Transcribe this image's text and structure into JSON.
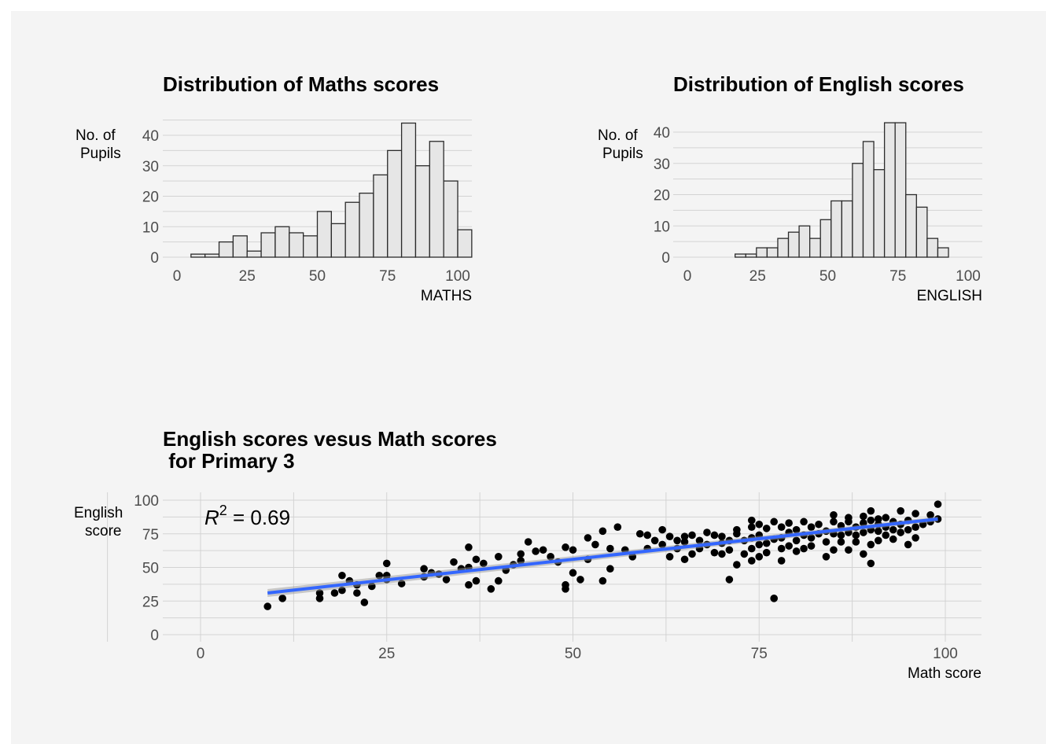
{
  "colors": {
    "background": "#f4f4f4",
    "bar_fill": "#e6e6e6",
    "bar_stroke": "#2b2b2b",
    "fit_line": "#3366ff",
    "point": "#000000",
    "grid": "#d3d3d3"
  },
  "chart_data": [
    {
      "type": "bar",
      "subtype": "histogram",
      "title": "Distribution of Maths scores",
      "xlabel": "MATHS",
      "ylabel": [
        "No. of",
        "Pupils"
      ],
      "xlim": [
        0,
        100
      ],
      "ylim": [
        0,
        45
      ],
      "xticks": [
        0,
        25,
        50,
        75,
        100
      ],
      "yticks": [
        0,
        10,
        20,
        30,
        40
      ],
      "bin_width": 5,
      "bin_start": 5,
      "values": [
        1,
        1,
        5,
        7,
        2,
        8,
        10,
        8,
        7,
        15,
        11,
        18,
        21,
        27,
        35,
        44,
        30,
        38,
        25,
        9
      ]
    },
    {
      "type": "bar",
      "subtype": "histogram",
      "title": "Distribution of English scores",
      "xlabel": "ENGLISH",
      "ylabel": [
        "No. of",
        "Pupils"
      ],
      "xlim": [
        0,
        100
      ],
      "ylim": [
        0,
        44
      ],
      "xticks": [
        0,
        25,
        50,
        75,
        100
      ],
      "yticks": [
        0,
        10,
        20,
        30,
        40
      ],
      "bin_width": 3.8,
      "bin_start": 17,
      "values": [
        1,
        1,
        3,
        3,
        6,
        8,
        10,
        6,
        12,
        18,
        18,
        30,
        37,
        28,
        43,
        43,
        20,
        16,
        6,
        3
      ]
    },
    {
      "type": "scatter",
      "title": [
        "English scores vesus Math scores",
        " for Primary 3"
      ],
      "xlabel": "Math score",
      "ylabel": [
        "English",
        "score"
      ],
      "xlim": [
        0,
        100
      ],
      "ylim": [
        0,
        100
      ],
      "xticks": [
        0,
        25,
        50,
        75,
        100
      ],
      "yticks": [
        0,
        25,
        50,
        75,
        100
      ],
      "annotation": {
        "base": "R",
        "superscript": "2",
        "text": " = 0.69"
      },
      "fit": {
        "x": [
          9,
          99
        ],
        "y": [
          31,
          86
        ]
      },
      "points": [
        [
          9,
          21
        ],
        [
          11,
          27
        ],
        [
          16,
          27
        ],
        [
          16,
          31
        ],
        [
          18,
          31
        ],
        [
          19,
          33
        ],
        [
          19,
          44
        ],
        [
          20,
          40
        ],
        [
          21,
          31
        ],
        [
          21,
          37
        ],
        [
          22,
          24
        ],
        [
          23,
          36
        ],
        [
          24,
          44
        ],
        [
          25,
          41
        ],
        [
          25,
          44
        ],
        [
          25,
          53
        ],
        [
          27,
          38
        ],
        [
          30,
          43
        ],
        [
          30,
          49
        ],
        [
          31,
          46
        ],
        [
          32,
          45
        ],
        [
          33,
          41
        ],
        [
          34,
          54
        ],
        [
          35,
          49
        ],
        [
          36,
          50
        ],
        [
          36,
          65
        ],
        [
          36,
          37
        ],
        [
          37,
          40
        ],
        [
          37,
          56
        ],
        [
          38,
          53
        ],
        [
          39,
          34
        ],
        [
          40,
          40
        ],
        [
          40,
          58
        ],
        [
          41,
          48
        ],
        [
          42,
          52
        ],
        [
          43,
          55
        ],
        [
          43,
          60
        ],
        [
          44,
          69
        ],
        [
          45,
          62
        ],
        [
          46,
          63
        ],
        [
          47,
          58
        ],
        [
          48,
          54
        ],
        [
          49,
          65
        ],
        [
          49,
          37
        ],
        [
          49,
          34
        ],
        [
          50,
          46
        ],
        [
          50,
          63
        ],
        [
          51,
          41
        ],
        [
          52,
          56
        ],
        [
          52,
          72
        ],
        [
          53,
          67
        ],
        [
          54,
          77
        ],
        [
          54,
          40
        ],
        [
          55,
          49
        ],
        [
          55,
          64
        ],
        [
          56,
          80
        ],
        [
          57,
          63
        ],
        [
          58,
          58
        ],
        [
          59,
          75
        ],
        [
          60,
          64
        ],
        [
          60,
          74
        ],
        [
          61,
          70
        ],
        [
          62,
          67
        ],
        [
          62,
          78
        ],
        [
          63,
          58
        ],
        [
          63,
          73
        ],
        [
          64,
          64
        ],
        [
          64,
          70
        ],
        [
          65,
          56
        ],
        [
          65,
          69
        ],
        [
          65,
          73
        ],
        [
          66,
          60
        ],
        [
          66,
          74
        ],
        [
          67,
          64
        ],
        [
          67,
          70
        ],
        [
          68,
          67
        ],
        [
          68,
          76
        ],
        [
          69,
          61
        ],
        [
          69,
          74
        ],
        [
          70,
          60
        ],
        [
          70,
          68
        ],
        [
          70,
          73
        ],
        [
          71,
          41
        ],
        [
          71,
          63
        ],
        [
          71,
          70
        ],
        [
          72,
          52
        ],
        [
          72,
          75
        ],
        [
          72,
          78
        ],
        [
          73,
          60
        ],
        [
          73,
          70
        ],
        [
          74,
          55
        ],
        [
          74,
          64
        ],
        [
          74,
          72
        ],
        [
          74,
          80
        ],
        [
          74,
          85
        ],
        [
          75,
          58
        ],
        [
          75,
          67
        ],
        [
          75,
          74
        ],
        [
          75,
          82
        ],
        [
          76,
          61
        ],
        [
          76,
          68
        ],
        [
          76,
          79
        ],
        [
          77,
          27
        ],
        [
          77,
          71
        ],
        [
          77,
          84
        ],
        [
          78,
          55
        ],
        [
          78,
          64
        ],
        [
          78,
          72
        ],
        [
          78,
          80
        ],
        [
          79,
          66
        ],
        [
          79,
          76
        ],
        [
          79,
          83
        ],
        [
          80,
          62
        ],
        [
          80,
          70
        ],
        [
          80,
          78
        ],
        [
          81,
          64
        ],
        [
          81,
          74
        ],
        [
          81,
          84
        ],
        [
          82,
          66
        ],
        [
          82,
          72
        ],
        [
          82,
          80
        ],
        [
          83,
          75
        ],
        [
          83,
          82
        ],
        [
          84,
          58
        ],
        [
          84,
          69
        ],
        [
          84,
          77
        ],
        [
          85,
          63
        ],
        [
          85,
          75
        ],
        [
          85,
          84
        ],
        [
          85,
          89
        ],
        [
          86,
          69
        ],
        [
          86,
          74
        ],
        [
          86,
          81
        ],
        [
          87,
          63
        ],
        [
          87,
          76
        ],
        [
          87,
          84
        ],
        [
          87,
          87
        ],
        [
          88,
          69
        ],
        [
          88,
          74
        ],
        [
          88,
          80
        ],
        [
          89,
          60
        ],
        [
          89,
          76
        ],
        [
          89,
          83
        ],
        [
          89,
          88
        ],
        [
          90,
          53
        ],
        [
          90,
          67
        ],
        [
          90,
          78
        ],
        [
          90,
          85
        ],
        [
          90,
          92
        ],
        [
          91,
          70
        ],
        [
          91,
          77
        ],
        [
          91,
          82
        ],
        [
          91,
          86
        ],
        [
          92,
          74
        ],
        [
          92,
          80
        ],
        [
          92,
          87
        ],
        [
          93,
          71
        ],
        [
          93,
          78
        ],
        [
          93,
          84
        ],
        [
          94,
          76
        ],
        [
          94,
          82
        ],
        [
          94,
          92
        ],
        [
          95,
          67
        ],
        [
          95,
          78
        ],
        [
          95,
          85
        ],
        [
          96,
          72
        ],
        [
          96,
          80
        ],
        [
          96,
          90
        ],
        [
          97,
          82
        ],
        [
          98,
          84
        ],
        [
          98,
          89
        ],
        [
          99,
          86
        ],
        [
          99,
          97
        ]
      ]
    }
  ]
}
